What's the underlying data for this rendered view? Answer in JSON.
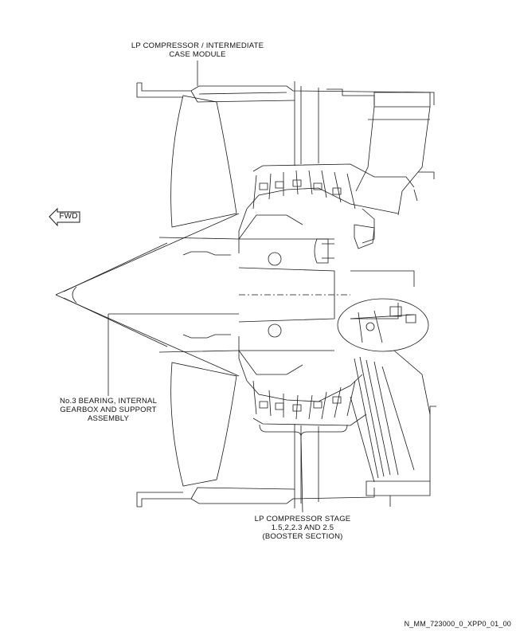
{
  "labels": {
    "top_callout_line1": "LP COMPRESSOR / INTERMEDIATE",
    "top_callout_line2": "CASE MODULE",
    "left_callout_line1": "No.3 BEARING, INTERNAL",
    "left_callout_line2": "GEARBOX AND SUPPORT",
    "left_callout_line3": "ASSEMBLY",
    "bottom_callout_line1": "LP COMPRESSOR STAGE",
    "bottom_callout_line2": "1.5,2,2.3 AND 2.5",
    "bottom_callout_line3": "(BOOSTER SECTION)",
    "fwd_arrow": "FWD",
    "document_id": "N_MM_723000_0_XPP0_01_00"
  },
  "colors": {
    "line": "#1a1a1a",
    "background": "#ffffff"
  }
}
